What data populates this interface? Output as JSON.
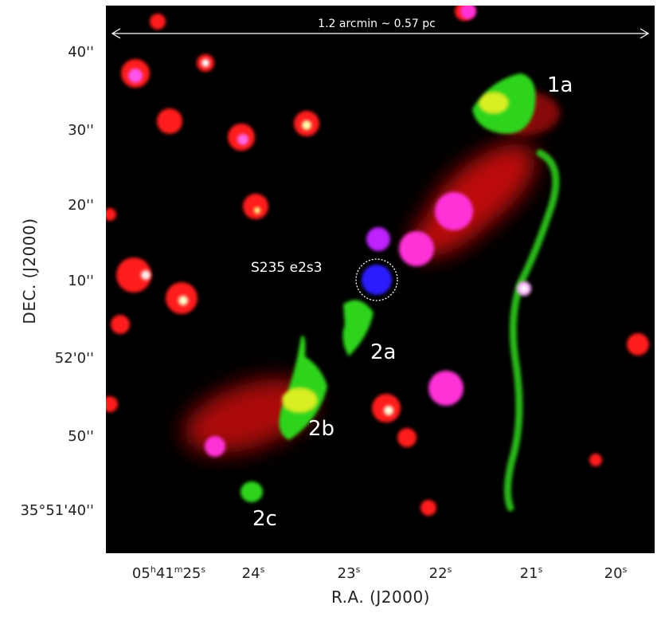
{
  "image": {
    "scale_bar_label": "1.2 arcmin ~ 0.57 pc",
    "source_label": "S235 e2s3",
    "region_labels": [
      "1a",
      "2a",
      "2b",
      "2c"
    ]
  },
  "y_axis": {
    "title": "DEC. (J2000)",
    "ticks": [
      "40''",
      "30''",
      "20''",
      "10''",
      "52'0''",
      "50''",
      "35°51'40''"
    ]
  },
  "x_axis": {
    "title": "R.A. (J2000)",
    "ticks": [
      {
        "main": "05",
        "h": "h",
        "m1": "41",
        "m": "m",
        "s1": "25",
        "s": "s"
      },
      {
        "main": "24",
        "s": "s"
      },
      {
        "main": "23",
        "s": "s"
      },
      {
        "main": "22",
        "s": "s"
      },
      {
        "main": "21",
        "s": "s"
      },
      {
        "main": "20",
        "s": "s"
      }
    ]
  },
  "colors": {
    "background": "#000000",
    "red_emission": "#ff1a1a",
    "green_emission": "#33dd22",
    "blue_source": "#2a1aff",
    "magenta_star": "#ff33dd",
    "yellow_overlap": "#e6f020",
    "annotation_white": "#ffffff"
  }
}
